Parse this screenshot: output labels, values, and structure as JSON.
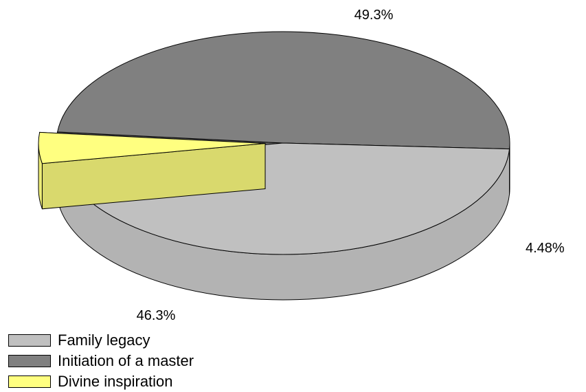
{
  "chart_data": {
    "type": "pie",
    "three_d": true,
    "title": "",
    "legend_position": "bottom-left",
    "series": [
      {
        "name": "Family legacy",
        "value": 46.3,
        "label": "46.3%",
        "color": "#c0c0c0",
        "exploded": false
      },
      {
        "name": "Initiation of a master",
        "value": 49.3,
        "label": "49.3%",
        "color": "#808080",
        "exploded": false
      },
      {
        "name": "Divine inspiration",
        "value": 4.48,
        "label": "4.48%",
        "color": "#ffff80",
        "exploded": true
      }
    ]
  }
}
